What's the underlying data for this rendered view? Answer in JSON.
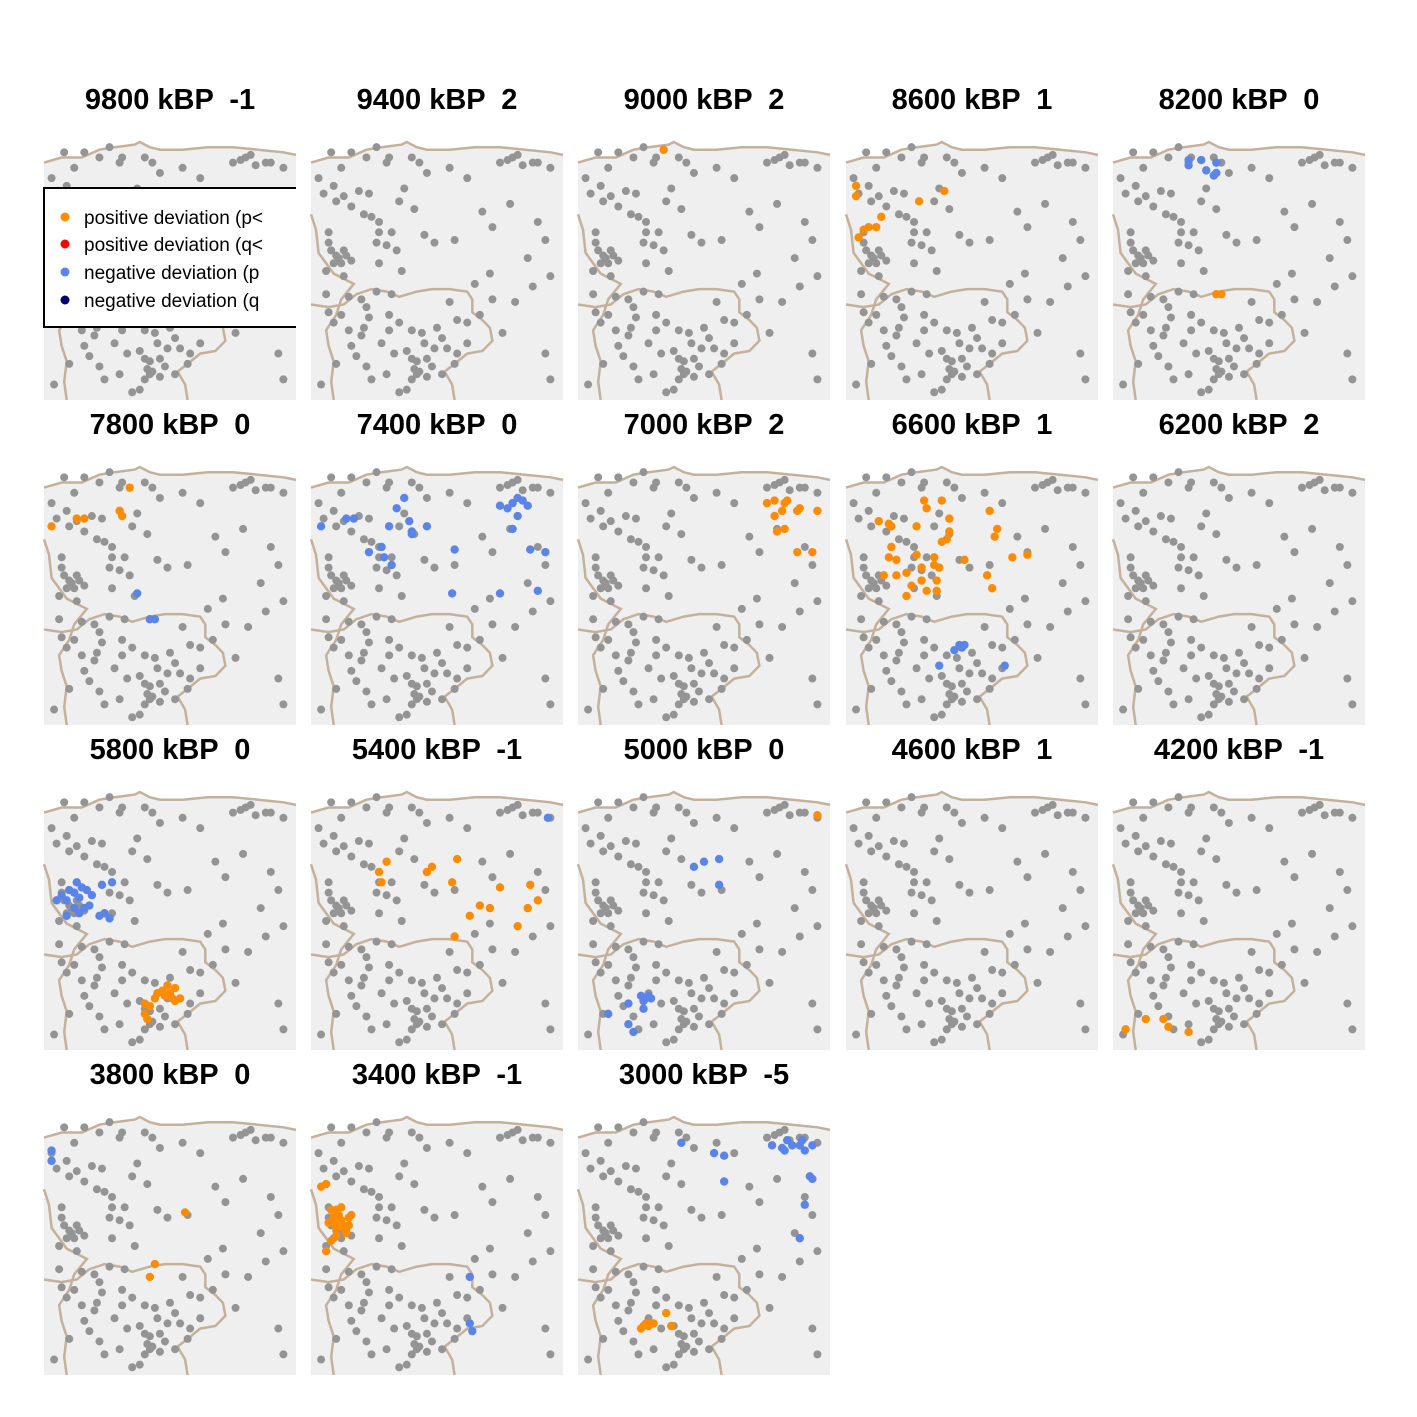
{
  "legend": {
    "entries": [
      {
        "label": "positive deviation (p<",
        "color": "#ff8c00"
      },
      {
        "label": "positive deviation (q<",
        "color": "#ff0000"
      },
      {
        "label": "negative deviation (p",
        "color": "#5b84e8"
      },
      {
        "label": "negative deviation (q",
        "color": "#00006e"
      }
    ]
  },
  "colors": {
    "background": "#efefef",
    "coast": "#c4b19b",
    "site": "#949494",
    "positive_p": "#ff8c00",
    "negative_p": "#5b84e8"
  },
  "chart_data": {
    "type": "scatter",
    "grid": false,
    "legend_position": "top-left of first panel",
    "panels": [
      {
        "title": "9800 kBP  -1",
        "positive": [],
        "negative": []
      },
      {
        "title": "9400 kBP  2",
        "positive": [],
        "negative": []
      },
      {
        "title": "9000 kBP  2",
        "positive": [
          [
            0.34,
            0.03
          ]
        ],
        "negative": []
      },
      {
        "title": "8600 kBP  1",
        "positive": [
          [
            0.04,
            0.17
          ],
          [
            0.04,
            0.21
          ],
          [
            0.05,
            0.37
          ],
          [
            0.07,
            0.34
          ],
          [
            0.09,
            0.33
          ],
          [
            0.12,
            0.33
          ],
          [
            0.14,
            0.29
          ],
          [
            0.29,
            0.23
          ],
          [
            0.39,
            0.19
          ]
        ],
        "negative": []
      },
      {
        "title": "8200 kBP  0",
        "positive": [
          [
            0.41,
            0.59
          ],
          [
            0.43,
            0.59
          ]
        ],
        "negative": [
          [
            0.3,
            0.07
          ],
          [
            0.3,
            0.09
          ],
          [
            0.35,
            0.07
          ],
          [
            0.37,
            0.11
          ],
          [
            0.41,
            0.08
          ],
          [
            0.41,
            0.12
          ],
          [
            0.4,
            0.13
          ]
        ]
      },
      {
        "title": "7800 kBP  0",
        "positive": [
          [
            0.03,
            0.23
          ],
          [
            0.13,
            0.2
          ],
          [
            0.16,
            0.2
          ],
          [
            0.3,
            0.17
          ],
          [
            0.31,
            0.19
          ],
          [
            0.34,
            0.08
          ]
        ],
        "negative": [
          [
            0.37,
            0.49
          ],
          [
            0.42,
            0.59
          ],
          [
            0.44,
            0.59
          ]
        ]
      },
      {
        "title": "7400 kBP  0",
        "positive": [],
        "negative": [
          [
            0.04,
            0.23
          ],
          [
            0.14,
            0.2
          ],
          [
            0.17,
            0.2
          ],
          [
            0.23,
            0.33
          ],
          [
            0.28,
            0.31
          ],
          [
            0.29,
            0.35
          ],
          [
            0.31,
            0.23
          ],
          [
            0.32,
            0.38
          ],
          [
            0.34,
            0.16
          ],
          [
            0.37,
            0.12
          ],
          [
            0.39,
            0.21
          ],
          [
            0.4,
            0.25
          ],
          [
            0.4,
            0.26
          ],
          [
            0.46,
            0.23
          ],
          [
            0.57,
            0.32
          ],
          [
            0.56,
            0.49
          ],
          [
            0.75,
            0.15
          ],
          [
            0.78,
            0.16
          ],
          [
            0.8,
            0.14
          ],
          [
            0.82,
            0.19
          ],
          [
            0.8,
            0.24
          ],
          [
            0.82,
            0.12
          ],
          [
            0.84,
            0.13
          ],
          [
            0.86,
            0.15
          ],
          [
            0.87,
            0.32
          ],
          [
            0.93,
            0.33
          ],
          [
            0.75,
            0.49
          ],
          [
            0.9,
            0.48
          ]
        ]
      },
      {
        "title": "7000 kBP  2",
        "positive": [
          [
            0.75,
            0.14
          ],
          [
            0.78,
            0.13
          ],
          [
            0.82,
            0.14
          ],
          [
            0.83,
            0.13
          ],
          [
            0.88,
            0.16
          ],
          [
            0.78,
            0.19
          ],
          [
            0.81,
            0.17
          ],
          [
            0.82,
            0.24
          ],
          [
            0.79,
            0.25
          ],
          [
            0.87,
            0.17
          ],
          [
            0.95,
            0.17
          ],
          [
            0.87,
            0.33
          ],
          [
            0.93,
            0.33
          ]
        ],
        "negative": []
      },
      {
        "title": "6600 kBP  1",
        "positive": [
          [
            0.13,
            0.21
          ],
          [
            0.17,
            0.22
          ],
          [
            0.18,
            0.23
          ],
          [
            0.28,
            0.23
          ],
          [
            0.31,
            0.13
          ],
          [
            0.32,
            0.16
          ],
          [
            0.38,
            0.13
          ],
          [
            0.41,
            0.2
          ],
          [
            0.41,
            0.25
          ],
          [
            0.4,
            0.28
          ],
          [
            0.18,
            0.31
          ],
          [
            0.17,
            0.35
          ],
          [
            0.2,
            0.36
          ],
          [
            0.15,
            0.42
          ],
          [
            0.2,
            0.42
          ],
          [
            0.28,
            0.34
          ],
          [
            0.3,
            0.39
          ],
          [
            0.3,
            0.44
          ],
          [
            0.35,
            0.35
          ],
          [
            0.35,
            0.38
          ],
          [
            0.38,
            0.29
          ],
          [
            0.37,
            0.39
          ],
          [
            0.36,
            0.44
          ],
          [
            0.36,
            0.48
          ],
          [
            0.24,
            0.41
          ],
          [
            0.26,
            0.46
          ],
          [
            0.24,
            0.5
          ],
          [
            0.32,
            0.48
          ],
          [
            0.47,
            0.36
          ],
          [
            0.56,
            0.42
          ],
          [
            0.58,
            0.47
          ],
          [
            0.66,
            0.35
          ],
          [
            0.72,
            0.34
          ],
          [
            0.59,
            0.27
          ],
          [
            0.6,
            0.24
          ],
          [
            0.57,
            0.17
          ]
        ],
        "negative": [
          [
            0.37,
            0.77
          ],
          [
            0.43,
            0.71
          ],
          [
            0.45,
            0.69
          ],
          [
            0.46,
            0.7
          ],
          [
            0.47,
            0.69
          ],
          [
            0.63,
            0.77
          ]
        ]
      },
      {
        "title": "6200 kBP  2",
        "positive": [],
        "negative": []
      },
      {
        "title": "5800 kBP  0",
        "positive": [
          [
            0.44,
            0.8
          ],
          [
            0.45,
            0.78
          ],
          [
            0.47,
            0.77
          ],
          [
            0.48,
            0.79
          ],
          [
            0.5,
            0.78
          ],
          [
            0.51,
            0.8
          ],
          [
            0.52,
            0.76
          ],
          [
            0.49,
            0.75
          ],
          [
            0.4,
            0.82
          ],
          [
            0.4,
            0.86
          ],
          [
            0.41,
            0.88
          ],
          [
            0.42,
            0.83
          ],
          [
            0.52,
            0.81
          ],
          [
            0.54,
            0.8
          ]
        ],
        "negative": [
          [
            0.05,
            0.42
          ],
          [
            0.07,
            0.4
          ],
          [
            0.09,
            0.42
          ],
          [
            0.1,
            0.38
          ],
          [
            0.12,
            0.39
          ],
          [
            0.14,
            0.41
          ],
          [
            0.17,
            0.38
          ],
          [
            0.18,
            0.44
          ],
          [
            0.22,
            0.48
          ],
          [
            0.24,
            0.47
          ],
          [
            0.26,
            0.49
          ],
          [
            0.23,
            0.36
          ],
          [
            0.27,
            0.35
          ],
          [
            0.12,
            0.45
          ],
          [
            0.16,
            0.45
          ],
          [
            0.09,
            0.48
          ],
          [
            0.14,
            0.47
          ],
          [
            0.13,
            0.35
          ],
          [
            0.19,
            0.4
          ],
          [
            0.15,
            0.37
          ]
        ]
      },
      {
        "title": "5400 kBP  -1",
        "positive": [
          [
            0.27,
            0.31
          ],
          [
            0.3,
            0.27
          ],
          [
            0.28,
            0.35
          ],
          [
            0.46,
            0.31
          ],
          [
            0.48,
            0.29
          ],
          [
            0.58,
            0.26
          ],
          [
            0.56,
            0.35
          ],
          [
            0.75,
            0.37
          ],
          [
            0.87,
            0.36
          ],
          [
            0.86,
            0.45
          ],
          [
            0.9,
            0.42
          ],
          [
            0.82,
            0.52
          ],
          [
            0.71,
            0.45
          ],
          [
            0.67,
            0.44
          ],
          [
            0.63,
            0.48
          ],
          [
            0.57,
            0.56
          ]
        ],
        "negative": [
          [
            0.94,
            0.1
          ]
        ]
      },
      {
        "title": "5000 kBP  0",
        "positive": [
          [
            0.95,
            0.09
          ]
        ],
        "negative": [
          [
            0.46,
            0.29
          ],
          [
            0.5,
            0.27
          ],
          [
            0.56,
            0.26
          ],
          [
            0.56,
            0.36
          ],
          [
            0.12,
            0.86
          ],
          [
            0.2,
            0.82
          ],
          [
            0.2,
            0.9
          ],
          [
            0.22,
            0.93
          ],
          [
            0.25,
            0.79
          ],
          [
            0.26,
            0.81
          ],
          [
            0.27,
            0.8
          ],
          [
            0.28,
            0.79
          ],
          [
            0.29,
            0.8
          ],
          [
            0.26,
            0.84
          ]
        ]
      },
      {
        "title": "4600 kBP  1",
        "positive": [],
        "negative": []
      },
      {
        "title": "4200 kBP  -1",
        "positive": [
          [
            0.05,
            0.92
          ],
          [
            0.13,
            0.88
          ],
          [
            0.2,
            0.88
          ],
          [
            0.22,
            0.91
          ],
          [
            0.3,
            0.93
          ]
        ],
        "negative": []
      },
      {
        "title": "3800 kBP  0",
        "positive": [
          [
            0.56,
            0.37
          ],
          [
            0.44,
            0.57
          ],
          [
            0.42,
            0.62
          ]
        ],
        "negative": [
          [
            0.03,
            0.13
          ],
          [
            0.03,
            0.17
          ]
        ]
      },
      {
        "title": "3400 kBP  -1",
        "positive": [
          [
            0.04,
            0.27
          ],
          [
            0.06,
            0.26
          ],
          [
            0.08,
            0.36
          ],
          [
            0.09,
            0.39
          ],
          [
            0.11,
            0.38
          ],
          [
            0.12,
            0.4
          ],
          [
            0.09,
            0.41
          ],
          [
            0.1,
            0.43
          ],
          [
            0.12,
            0.41
          ],
          [
            0.13,
            0.43
          ],
          [
            0.14,
            0.45
          ],
          [
            0.15,
            0.42
          ],
          [
            0.16,
            0.38
          ],
          [
            0.1,
            0.46
          ],
          [
            0.08,
            0.48
          ],
          [
            0.06,
            0.52
          ],
          [
            0.07,
            0.41
          ],
          [
            0.1,
            0.36
          ],
          [
            0.12,
            0.35
          ],
          [
            0.15,
            0.39
          ]
        ],
        "negative": [
          [
            0.63,
            0.62
          ],
          [
            0.63,
            0.8
          ],
          [
            0.64,
            0.83
          ]
        ]
      },
      {
        "title": "3000 kBP  -5",
        "positive": [
          [
            0.25,
            0.82
          ],
          [
            0.26,
            0.81
          ],
          [
            0.27,
            0.8
          ],
          [
            0.28,
            0.81
          ],
          [
            0.29,
            0.8
          ],
          [
            0.3,
            0.8
          ],
          [
            0.35,
            0.76
          ],
          [
            0.37,
            0.81
          ]
        ],
        "negative": [
          [
            0.41,
            0.1
          ],
          [
            0.54,
            0.14
          ],
          [
            0.58,
            0.25
          ],
          [
            0.58,
            0.15
          ],
          [
            0.77,
            0.11
          ],
          [
            0.81,
            0.12
          ],
          [
            0.82,
            0.13
          ],
          [
            0.83,
            0.09
          ],
          [
            0.85,
            0.11
          ],
          [
            0.88,
            0.11
          ],
          [
            0.9,
            0.13
          ],
          [
            0.89,
            0.09
          ],
          [
            0.93,
            0.11
          ],
          [
            0.92,
            0.23
          ],
          [
            0.93,
            0.24
          ],
          [
            0.9,
            0.34
          ],
          [
            0.88,
            0.47
          ]
        ]
      }
    ]
  }
}
